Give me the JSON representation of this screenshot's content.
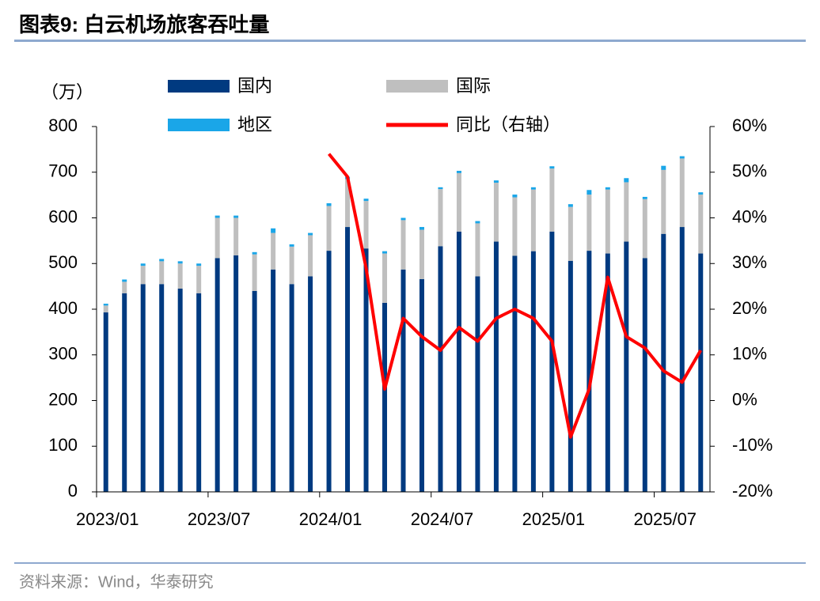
{
  "chart_data": {
    "type": "stacked-bar-line",
    "title": "图表9:  白云机场旅客吞吐量",
    "y_label": "（万）",
    "source": "资料来源：Wind，华泰研究",
    "categories": [
      "2023/01",
      null,
      null,
      null,
      null,
      null,
      "2023/07",
      null,
      null,
      null,
      null,
      null,
      "2024/01",
      null,
      null,
      null,
      null,
      null,
      "2024/07",
      null,
      null,
      null,
      null,
      null,
      "2025/01",
      null,
      null,
      null,
      null,
      null,
      "2025/07",
      null,
      null
    ],
    "series": [
      {
        "name": "国内",
        "color": "#003a80",
        "values": [
          393,
          435,
          455,
          455,
          445,
          435,
          512,
          518,
          440,
          487,
          455,
          472,
          528,
          580,
          533,
          414,
          487,
          466,
          538,
          570,
          472,
          548,
          517,
          527,
          570,
          506,
          528,
          522,
          548,
          512,
          565,
          580,
          522
        ]
      },
      {
        "name": "国际",
        "color": "#bfbfbf",
        "values": [
          15,
          25,
          40,
          50,
          55,
          60,
          88,
          82,
          80,
          80,
          82,
          90,
          98,
          105,
          104,
          108,
          108,
          108,
          125,
          128,
          116,
          129,
          128,
          135,
          138,
          118,
          123,
          140,
          130,
          129,
          140,
          150,
          129
        ]
      },
      {
        "name": "地区",
        "color": "#1aa6e8",
        "values": [
          4,
          5,
          5,
          5,
          5,
          5,
          5,
          5,
          5,
          10,
          5,
          5,
          6,
          5,
          5,
          5,
          5,
          6,
          4,
          5,
          5,
          5,
          6,
          5,
          5,
          6,
          10,
          5,
          9,
          5,
          9,
          5,
          5
        ]
      },
      {
        "name": "同比（右轴）",
        "color": "#ff0000",
        "axis": "y2",
        "values": [
          null,
          null,
          null,
          null,
          null,
          null,
          null,
          null,
          null,
          null,
          null,
          null,
          54,
          49,
          29,
          2.5,
          18,
          14,
          11,
          16,
          13,
          18,
          20,
          18,
          13,
          -8,
          2.5,
          27,
          14,
          11.5,
          6.5,
          4,
          11
        ]
      }
    ],
    "ylim": [
      0,
      800
    ],
    "yticks": [
      0,
      100,
      200,
      300,
      400,
      500,
      600,
      700,
      800
    ],
    "y2lim": [
      -20,
      60
    ],
    "y2ticks": [
      {
        "value": -20,
        "label": "-20%"
      },
      {
        "value": -10,
        "label": "-10%"
      },
      {
        "value": 0,
        "label": "0%"
      },
      {
        "value": 10,
        "label": "10%"
      },
      {
        "value": 20,
        "label": "20%"
      },
      {
        "value": 30,
        "label": "30%"
      },
      {
        "value": 40,
        "label": "40%"
      },
      {
        "value": 50,
        "label": "50%"
      },
      {
        "value": 60,
        "label": "60%"
      }
    ]
  }
}
